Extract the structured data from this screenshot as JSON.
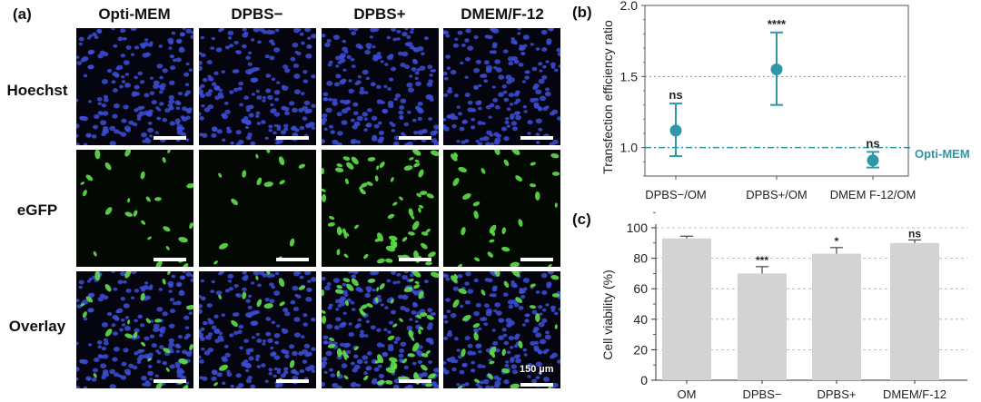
{
  "panel_a": {
    "letter": "(a)",
    "columns": [
      "Opti-MEM",
      "DPBS−",
      "DPBS+",
      "DMEM/F-12"
    ],
    "rows": [
      "Hoechst",
      "eGFP",
      "Overlay"
    ],
    "green_density": [
      0.22,
      0.12,
      0.55,
      0.25
    ],
    "scale_label": "150 µm",
    "colors": {
      "nuclei": "#3d4fd6",
      "gfp": "#5fe04a",
      "background": "#050510"
    }
  },
  "chart_data": [
    {
      "type": "scatter",
      "panel": "(b)",
      "categories": [
        "DPBS−/OM",
        "DPBS+/OM",
        "DMEM F-12/OM"
      ],
      "values": [
        1.12,
        1.55,
        0.91
      ],
      "err_low": [
        0.94,
        1.3,
        0.86
      ],
      "err_high": [
        1.31,
        1.81,
        0.97
      ],
      "significance": [
        "ns",
        "****",
        "ns"
      ],
      "ylabel": "Transfection efficiency ratio",
      "ylim": [
        0.8,
        2.0
      ],
      "yticks": [
        "1.0",
        "1.5",
        "2.0"
      ],
      "ytick_values": [
        1.0,
        1.5,
        2.0
      ],
      "reference_line": {
        "value": 1.0,
        "label": "Opti-MEM"
      },
      "dotted_line": 1.5,
      "color": "#2e97a8"
    },
    {
      "type": "bar",
      "panel": "(c)",
      "categories": [
        "OM",
        "DPBS−",
        "DPBS+",
        "DMEM/F-12"
      ],
      "values": [
        93,
        70,
        83,
        90
      ],
      "errors": [
        1.5,
        4.5,
        4,
        2
      ],
      "significance": [
        "",
        "***",
        "*",
        "ns"
      ],
      "ylabel": "Cell viability (%)",
      "ylim": [
        0,
        100
      ],
      "yticks": [
        "0",
        "20",
        "40",
        "60",
        "80",
        "100"
      ],
      "ytick_values": [
        0,
        20,
        40,
        60,
        80,
        100
      ],
      "grid": true,
      "bar_color": "#d3d3d3"
    }
  ]
}
